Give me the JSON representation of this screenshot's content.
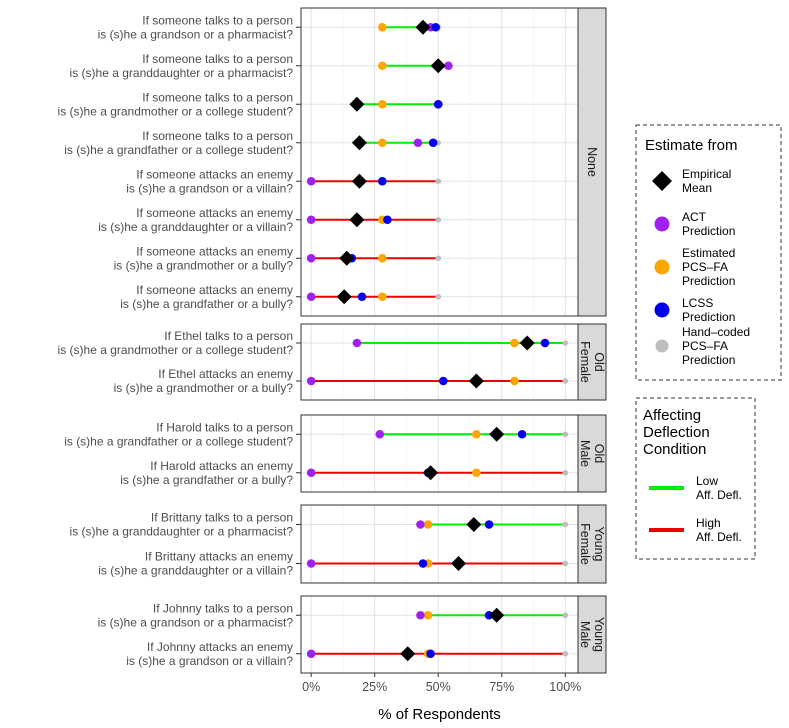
{
  "chart_data": {
    "type": "dot-range",
    "xlabel": "% of Respondents",
    "xlim": [
      -4,
      105
    ],
    "xticks": [
      0,
      25,
      50,
      75,
      100
    ],
    "xtick_labels": [
      "0%",
      "25%",
      "50%",
      "75%",
      "100%"
    ],
    "grid": true,
    "legend_placement": "right",
    "colors": {
      "low": "#00ee00",
      "high": "#ee0000",
      "empirical": "#000000",
      "act": "#a020f0",
      "pcsfa": "#ffa500",
      "lcss": "#0000ee",
      "handcoded": "#bebebe",
      "strip": "#d9d9d9"
    },
    "panels": [
      {
        "strip": [
          "None"
        ],
        "rows": [
          {
            "q1": "If someone talks to a person",
            "q2": "is (s)he a grandson or a pharmacist?",
            "condition": "low",
            "empirical": 44,
            "act": 47,
            "pcsfa": 28,
            "lcss": 49,
            "handcoded": 50
          },
          {
            "q1": "If someone talks to a person",
            "q2": "is (s)he a granddaughter or a pharmacist?",
            "condition": "low",
            "empirical": 50,
            "act": 54,
            "pcsfa": 28,
            "lcss": 50,
            "handcoded": 50
          },
          {
            "q1": "If someone talks to a person",
            "q2": "is (s)he a grandmother or a college student?",
            "condition": "low",
            "empirical": 18,
            "act": 50,
            "pcsfa": 28,
            "lcss": 50,
            "handcoded": 50
          },
          {
            "q1": "If someone talks to a person",
            "q2": "is (s)he a grandfather or a college student?",
            "condition": "low",
            "empirical": 19,
            "act": 42,
            "pcsfa": 28,
            "lcss": 48,
            "handcoded": 50
          },
          {
            "q1": "If someone attacks an enemy",
            "q2": "is (s)he a grandson or a villain?",
            "condition": "high",
            "empirical": 19,
            "act": 0,
            "pcsfa": 28,
            "lcss": 28,
            "handcoded": 50
          },
          {
            "q1": "If someone attacks an enemy",
            "q2": "is (s)he a granddaughter or a villain?",
            "condition": "high",
            "empirical": 18,
            "act": 0,
            "pcsfa": 28,
            "lcss": 30,
            "handcoded": 50
          },
          {
            "q1": "If someone attacks an enemy",
            "q2": "is (s)he a grandmother or a bully?",
            "condition": "high",
            "empirical": 14,
            "act": 0,
            "pcsfa": 28,
            "lcss": 16,
            "handcoded": 50
          },
          {
            "q1": "If someone attacks an enemy",
            "q2": "is (s)he a grandfather or a bully?",
            "condition": "high",
            "empirical": 13,
            "act": 0,
            "pcsfa": 28,
            "lcss": 20,
            "handcoded": 50
          }
        ]
      },
      {
        "strip": [
          "Old",
          "Female"
        ],
        "rows": [
          {
            "q1": "If Ethel talks to a person",
            "q2": "is (s)he a grandmother or a college student?",
            "condition": "low",
            "empirical": 85,
            "act": 18,
            "pcsfa": 80,
            "lcss": 92,
            "handcoded": 100
          },
          {
            "q1": "If Ethel attacks an enemy",
            "q2": "is (s)he a grandmother or a bully?",
            "condition": "high",
            "empirical": 65,
            "act": 0,
            "pcsfa": 80,
            "lcss": 52,
            "handcoded": 100
          }
        ]
      },
      {
        "strip": [
          "Old",
          "Male"
        ],
        "rows": [
          {
            "q1": "If Harold talks to a person",
            "q2": "is (s)he a grandfather or a college student?",
            "condition": "low",
            "empirical": 73,
            "act": 27,
            "pcsfa": 65,
            "lcss": 83,
            "handcoded": 100
          },
          {
            "q1": "If Harold attacks an enemy",
            "q2": "is (s)he a grandfather or a bully?",
            "condition": "high",
            "empirical": 47,
            "act": 0,
            "pcsfa": 65,
            "lcss": 46,
            "handcoded": 100
          }
        ]
      },
      {
        "strip": [
          "Young",
          "Female"
        ],
        "rows": [
          {
            "q1": "If Brittany talks to a person",
            "q2": "is (s)he a granddaughter or a pharmacist?",
            "condition": "low",
            "empirical": 64,
            "act": 43,
            "pcsfa": 46,
            "lcss": 70,
            "handcoded": 100
          },
          {
            "q1": "If Brittany attacks an enemy",
            "q2": "is (s)he a granddaughter or a villain?",
            "condition": "high",
            "empirical": 58,
            "act": 0,
            "pcsfa": 46,
            "lcss": 44,
            "handcoded": 100
          }
        ]
      },
      {
        "strip": [
          "Young",
          "Male"
        ],
        "rows": [
          {
            "q1": "If Johnny talks to a person",
            "q2": "is (s)he a grandson or a pharmacist?",
            "condition": "low",
            "empirical": 73,
            "act": 43,
            "pcsfa": 46,
            "lcss": 70,
            "handcoded": 100
          },
          {
            "q1": "If Johnny attacks an enemy",
            "q2": "is (s)he a grandson or a villain?",
            "condition": "high",
            "empirical": 38,
            "act": 0,
            "pcsfa": 46,
            "lcss": 47,
            "handcoded": 100
          }
        ]
      }
    ],
    "legend_estimate": {
      "title": "Estimate from",
      "items": [
        {
          "key": "empirical",
          "shape": "diamond",
          "lines": [
            "Empirical",
            "Mean"
          ]
        },
        {
          "key": "act",
          "shape": "circle",
          "lines": [
            "ACT",
            "Prediction"
          ]
        },
        {
          "key": "pcsfa",
          "shape": "circle",
          "lines": [
            "Estimated",
            "PCS–FA",
            "Prediction"
          ]
        },
        {
          "key": "lcss",
          "shape": "circle",
          "lines": [
            "LCSS",
            "Prediction"
          ]
        },
        {
          "key": "handcoded",
          "shape": "smallcircle",
          "lines": [
            "Hand–coded",
            "PCS–FA",
            "Prediction"
          ]
        }
      ]
    },
    "legend_condition": {
      "title": [
        "Affecting",
        "Deflection",
        "Condition"
      ],
      "items": [
        {
          "key": "low",
          "lines": [
            "Low",
            "Aff. Defl."
          ]
        },
        {
          "key": "high",
          "lines": [
            "High",
            "Aff. Defl."
          ]
        }
      ]
    }
  }
}
